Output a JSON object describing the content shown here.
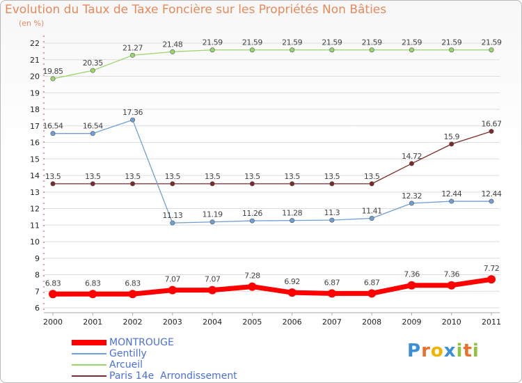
{
  "title": "Evolution du Taux de Taxe Foncière sur les Propriétés Non Bâties",
  "subtitle": "(en %)",
  "logo": {
    "text": "Proxiti",
    "letters": [
      {
        "char": "P",
        "color": "#3a8fd8"
      },
      {
        "char": "r",
        "color": "#e8702a"
      },
      {
        "char": "o",
        "color": "#f0b400"
      },
      {
        "char": "x",
        "color": "#3a8fd8"
      },
      {
        "char": "i",
        "color": "#8cc43c"
      },
      {
        "char": "t",
        "color": "#e8702a"
      },
      {
        "char": "i",
        "color": "#8cc43c"
      }
    ]
  },
  "chart_data": {
    "type": "line",
    "x": [
      "2000",
      "2001",
      "2002",
      "2003",
      "2004",
      "2005",
      "2006",
      "2007",
      "2008",
      "2009",
      "2010",
      "2011"
    ],
    "ylim": [
      6,
      22
    ],
    "yticks": [
      "6",
      "7",
      "8",
      "9",
      "10",
      "11",
      "12",
      "13",
      "14",
      "15",
      "16",
      "17",
      "18",
      "19",
      "20",
      "21",
      "22"
    ],
    "grid": "horizontal",
    "legend_position": "bottom-left",
    "series": [
      {
        "name": "MONTROUGE",
        "color": "#ff0000",
        "values": [
          6.83,
          6.83,
          6.83,
          7.07,
          7.07,
          7.28,
          6.92,
          6.87,
          6.87,
          7.36,
          7.36,
          7.72
        ],
        "labels": [
          "6.83",
          "6.83",
          "6.83",
          "7.07",
          "7.07",
          "7.28",
          "6.92",
          "6.87",
          "6.87",
          "7.36",
          "7.36",
          "7.72"
        ],
        "emphasis": "thick"
      },
      {
        "name": "Gentilly",
        "color": "#6f9fd3",
        "values": [
          16.54,
          16.54,
          17.36,
          11.13,
          11.19,
          11.26,
          11.28,
          11.3,
          11.41,
          12.32,
          12.44,
          12.44
        ],
        "labels": [
          "16.54",
          "16.54",
          "17.36",
          "11.13",
          "11.19",
          "11.26",
          "11.28",
          "11.3",
          "11.41",
          "12.32",
          "12.44",
          "12.44"
        ],
        "emphasis": "normal"
      },
      {
        "name": "Arcueil",
        "color": "#99d66b",
        "values": [
          19.85,
          20.35,
          21.27,
          21.48,
          21.59,
          21.59,
          21.59,
          21.59,
          21.59,
          21.59,
          21.59,
          21.59
        ],
        "labels": [
          "19.85",
          "20.35",
          "21.27",
          "21.48",
          "21.59",
          "21.59",
          "21.59",
          "21.59",
          "21.59",
          "21.59",
          "21.59",
          "21.59"
        ],
        "emphasis": "normal"
      },
      {
        "name": "Paris 14e  Arrondissement",
        "color": "#7a2a2a",
        "values": [
          13.5,
          13.5,
          13.5,
          13.5,
          13.5,
          13.5,
          13.5,
          13.5,
          13.5,
          14.72,
          15.9,
          16.67
        ],
        "labels": [
          "13.5",
          "13.5",
          "13.5",
          "13.5",
          "13.5",
          "13.5",
          "13.5",
          "13.5",
          "13.5",
          "14.72",
          "15.9",
          "16.67"
        ],
        "emphasis": "normal"
      }
    ]
  }
}
